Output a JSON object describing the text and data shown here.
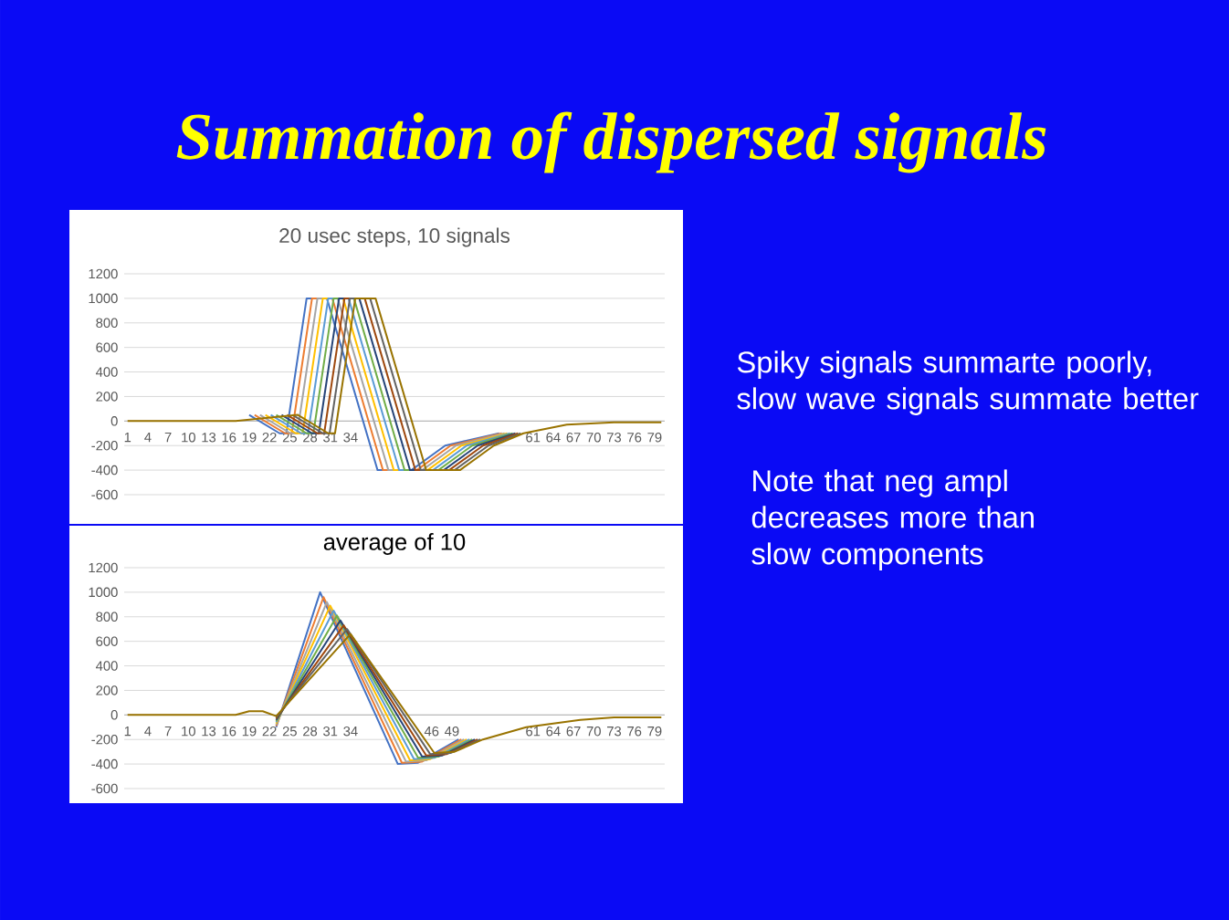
{
  "chart_data": [
    {
      "type": "line",
      "title": "20 usec steps, 10 signals",
      "xlim": [
        0.5,
        80.5
      ],
      "ylim": [
        -600,
        1200
      ],
      "xticks": [
        1,
        4,
        7,
        10,
        13,
        16,
        19,
        22,
        25,
        28,
        31,
        34,
        61,
        64,
        67,
        70,
        73,
        76,
        79
      ],
      "yticks": [
        -600,
        -400,
        -200,
        0,
        200,
        400,
        600,
        800,
        1000,
        1200
      ],
      "grid": "y",
      "series": [
        {
          "color": "#4472c4",
          "x": [
            19,
            23.5,
            24.5,
            27.5,
            30.5,
            38,
            43,
            48,
            56
          ],
          "values": [
            50,
            -100,
            -100,
            1000,
            1000,
            -400,
            -400,
            -200,
            -100
          ]
        },
        {
          "color": "#ed7d31",
          "x": [
            19.8,
            24.3,
            25.3,
            28.3,
            31.3,
            38.8,
            43.8,
            48.8,
            56.4
          ],
          "values": [
            50,
            -100,
            -100,
            1000,
            1000,
            -400,
            -400,
            -200,
            -100
          ]
        },
        {
          "color": "#a5a5a5",
          "x": [
            20.6,
            25.1,
            26.1,
            29.1,
            32.1,
            39.6,
            44.6,
            49.6,
            56.8
          ],
          "values": [
            50,
            -100,
            -100,
            1000,
            1000,
            -400,
            -400,
            -200,
            -100
          ]
        },
        {
          "color": "#ffc000",
          "x": [
            21.4,
            25.9,
            26.9,
            29.9,
            32.9,
            40.4,
            45.4,
            50.4,
            57.2
          ],
          "values": [
            50,
            -100,
            -100,
            1000,
            1000,
            -400,
            -400,
            -200,
            -100
          ]
        },
        {
          "color": "#5b9bd5",
          "x": [
            22.2,
            26.7,
            27.7,
            30.7,
            33.7,
            41.2,
            46.2,
            51.2,
            57.6
          ],
          "values": [
            50,
            -100,
            -100,
            1000,
            1000,
            -400,
            -400,
            -200,
            -100
          ]
        },
        {
          "color": "#70ad47",
          "x": [
            23,
            27.5,
            28.5,
            31.5,
            34.5,
            42,
            47,
            52,
            58
          ],
          "values": [
            50,
            -100,
            -100,
            1000,
            1000,
            -400,
            -400,
            -200,
            -100
          ]
        },
        {
          "color": "#264478",
          "x": [
            23.8,
            28.3,
            29.3,
            32.3,
            35.3,
            42.8,
            47.8,
            52.8,
            58.4
          ],
          "values": [
            50,
            -100,
            -100,
            1000,
            1000,
            -400,
            -400,
            -200,
            -100
          ]
        },
        {
          "color": "#9e480e",
          "x": [
            24.6,
            29.1,
            30.1,
            33.1,
            36.1,
            43.6,
            48.6,
            53.6,
            58.8
          ],
          "values": [
            50,
            -100,
            -100,
            1000,
            1000,
            -400,
            -400,
            -200,
            -100
          ]
        },
        {
          "color": "#636363",
          "x": [
            25.4,
            29.9,
            30.9,
            33.9,
            36.9,
            44.4,
            49.4,
            54.4,
            59.2
          ],
          "values": [
            50,
            -100,
            -100,
            1000,
            1000,
            -400,
            -400,
            -200,
            -100
          ]
        },
        {
          "color": "#997300",
          "x": [
            1,
            17,
            26.2,
            30.7,
            31.7,
            34.7,
            37.7,
            45.2,
            50.2,
            55.2,
            59.6,
            66,
            73,
            80
          ],
          "values": [
            0,
            0,
            50,
            -100,
            -100,
            1000,
            1000,
            -400,
            -400,
            -200,
            -100,
            -30,
            -10,
            -10
          ]
        }
      ]
    },
    {
      "type": "line",
      "title": "average of 10",
      "xlim": [
        0.5,
        80.5
      ],
      "ylim": [
        -600,
        1200
      ],
      "xticks": [
        1,
        4,
        7,
        10,
        13,
        16,
        19,
        22,
        25,
        28,
        31,
        34,
        46,
        49,
        61,
        64,
        67,
        70,
        73,
        76,
        79
      ],
      "yticks": [
        -600,
        -400,
        -200,
        0,
        200,
        400,
        600,
        800,
        1000,
        1200
      ],
      "grid": "y",
      "series": [
        {
          "color": "#4472c4",
          "x": [
            23,
            29.5,
            41,
            44,
            50
          ],
          "values": [
            -100,
            1000,
            -400,
            -390,
            -200
          ]
        },
        {
          "color": "#ed7d31",
          "x": [
            23,
            30,
            41.6,
            44.6,
            50.4
          ],
          "values": [
            -90,
            960,
            -390,
            -380,
            -200
          ]
        },
        {
          "color": "#a5a5a5",
          "x": [
            23,
            30.5,
            42.2,
            45.2,
            50.8
          ],
          "values": [
            -80,
            920,
            -380,
            -370,
            -200
          ]
        },
        {
          "color": "#ffc000",
          "x": [
            23,
            31,
            42.8,
            45.8,
            51.2
          ],
          "values": [
            -70,
            890,
            -370,
            -360,
            -200
          ]
        },
        {
          "color": "#5b9bd5",
          "x": [
            23,
            31.5,
            43.4,
            46.4,
            51.6
          ],
          "values": [
            -60,
            850,
            -360,
            -350,
            -200
          ]
        },
        {
          "color": "#70ad47",
          "x": [
            23,
            32,
            44,
            47,
            52
          ],
          "values": [
            -50,
            810,
            -350,
            -340,
            -200
          ]
        },
        {
          "color": "#264478",
          "x": [
            23,
            32.5,
            44.6,
            47.6,
            52.4
          ],
          "values": [
            -40,
            770,
            -340,
            -330,
            -200
          ]
        },
        {
          "color": "#9e480e",
          "x": [
            23,
            33,
            45.2,
            48.2,
            52.8
          ],
          "values": [
            -30,
            730,
            -330,
            -320,
            -200
          ]
        },
        {
          "color": "#636363",
          "x": [
            23,
            33.5,
            45.8,
            48.8,
            53.2
          ],
          "values": [
            -20,
            700,
            -320,
            -310,
            -200
          ]
        },
        {
          "color": "#997300",
          "x": [
            1,
            17,
            19,
            21,
            23,
            34,
            46.4,
            49.4,
            53.6,
            60,
            68,
            73,
            80
          ],
          "values": [
            0,
            0,
            30,
            30,
            -10,
            660,
            -310,
            -300,
            -200,
            -100,
            -40,
            -20,
            -20
          ]
        }
      ]
    },
    {
      "type": "other",
      "title": "Summation of dispersed signals",
      "annotations": [
        "Spiky signals summarte poorly, slow wave signals summate better",
        "Note that neg ampl decreases more than slow components"
      ]
    }
  ]
}
